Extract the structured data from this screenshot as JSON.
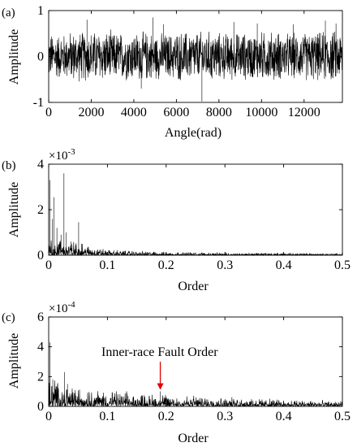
{
  "chart_data": [
    {
      "panel_label": "(a)",
      "type": "line",
      "xlabel": "Angle(rad)",
      "ylabel": "Amplitude",
      "xlim": [
        0,
        13800
      ],
      "ylim": [
        -1,
        1
      ],
      "xticks": [
        0,
        2000,
        4000,
        6000,
        8000,
        10000,
        12000
      ],
      "xtick_labels": [
        "0",
        "2000",
        "4000",
        "6000",
        "8000",
        "10000",
        "12000"
      ],
      "yticks": [
        -1,
        0,
        1
      ],
      "ytick_labels": [
        "-1",
        "0",
        "1"
      ],
      "y_exponent": "",
      "series": [
        {
          "description": "dense vibration signal, band roughly ±0.5 with spikes",
          "envelope_upper": [
            0.55,
            0.6,
            0.62,
            0.58,
            0.6,
            0.55,
            0.6,
            0.58,
            0.55,
            0.58,
            0.6,
            0.56,
            0.58,
            0.62
          ],
          "envelope_lower": [
            -0.55,
            -0.6,
            -0.6,
            -0.58,
            -0.58,
            -0.55,
            -0.6,
            -0.62,
            -0.58,
            -0.56,
            -0.6,
            -0.55,
            -0.58,
            -0.6
          ],
          "spikes": [
            [
              1800,
              0.8
            ],
            [
              4350,
              -0.7
            ],
            [
              4900,
              0.85
            ],
            [
              5400,
              0.7
            ],
            [
              7200,
              -0.98
            ],
            [
              8700,
              0.75
            ],
            [
              9800,
              0.72
            ],
            [
              11500,
              0.7
            ],
            [
              13000,
              0.78
            ],
            [
              13500,
              0.72
            ]
          ]
        }
      ]
    },
    {
      "panel_label": "(b)",
      "type": "line",
      "xlabel": "Order",
      "ylabel": "Amplitude",
      "xlim": [
        0,
        0.5
      ],
      "ylim": [
        0,
        4
      ],
      "xticks": [
        0,
        0.1,
        0.2,
        0.3,
        0.4,
        0.5
      ],
      "xtick_labels": [
        "0",
        "0.1",
        "0.2",
        "0.3",
        "0.4",
        "0.5"
      ],
      "yticks": [
        0,
        2,
        4
      ],
      "ytick_labels": [
        "0",
        "2",
        "4"
      ],
      "y_exponent": "×10",
      "y_exponent_power": "-3",
      "series": [
        {
          "description": "order spectrum; noise floor with dominant low-order peaks",
          "floor": [
            [
              0,
              0.6
            ],
            [
              0.02,
              0.45
            ],
            [
              0.05,
              0.35
            ],
            [
              0.08,
              0.22
            ],
            [
              0.1,
              0.15
            ],
            [
              0.2,
              0.09
            ],
            [
              0.3,
              0.07
            ],
            [
              0.4,
              0.06
            ],
            [
              0.5,
              0.05
            ]
          ],
          "peaks": [
            [
              0.002,
              3.3
            ],
            [
              0.006,
              1.6
            ],
            [
              0.009,
              2.55
            ],
            [
              0.014,
              1.2
            ],
            [
              0.021,
              0.9
            ],
            [
              0.026,
              3.6
            ],
            [
              0.03,
              1.0
            ],
            [
              0.038,
              0.6
            ],
            [
              0.051,
              1.45
            ],
            [
              0.056,
              0.5
            ]
          ]
        }
      ]
    },
    {
      "panel_label": "(c)",
      "type": "line",
      "xlabel": "Order",
      "ylabel": "Amplitude",
      "xlim": [
        0,
        0.5
      ],
      "ylim": [
        0,
        6
      ],
      "xticks": [
        0,
        0.1,
        0.2,
        0.3,
        0.4,
        0.5
      ],
      "xtick_labels": [
        "0",
        "0.1",
        "0.2",
        "0.3",
        "0.4",
        "0.5"
      ],
      "yticks": [
        0,
        2,
        4,
        6
      ],
      "ytick_labels": [
        "0",
        "2",
        "4",
        "6"
      ],
      "y_exponent": "×10",
      "y_exponent_power": "-4",
      "annotation": {
        "text": "Inner-race Fault Order",
        "x": 0.19,
        "y": 1.0,
        "arrow_color": "#e00000"
      },
      "series": [
        {
          "description": "envelope order spectrum; decaying noise floor with marked fault order",
          "floor": [
            [
              0,
              1.4
            ],
            [
              0.02,
              1.0
            ],
            [
              0.05,
              0.8
            ],
            [
              0.1,
              0.65
            ],
            [
              0.15,
              0.55
            ],
            [
              0.2,
              0.5
            ],
            [
              0.3,
              0.38
            ],
            [
              0.4,
              0.3
            ],
            [
              0.5,
              0.22
            ]
          ],
          "peaks": [
            [
              0.002,
              4.3
            ],
            [
              0.007,
              1.8
            ],
            [
              0.012,
              1.2
            ],
            [
              0.027,
              2.3
            ],
            [
              0.032,
              1.5
            ],
            [
              0.045,
              1.1
            ],
            [
              0.19,
              1.0
            ]
          ]
        }
      ]
    }
  ]
}
